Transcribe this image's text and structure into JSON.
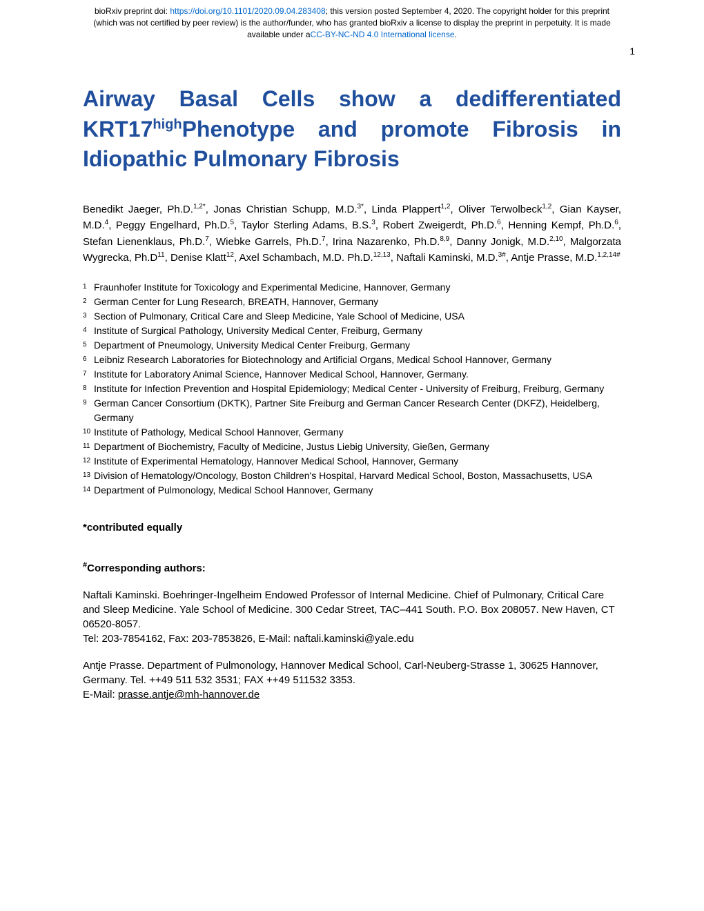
{
  "header": {
    "line1_prefix": "bioRxiv preprint doi: ",
    "doi_link": "https://doi.org/10.1101/2020.09.04.283408",
    "line1_suffix": "; this version posted September 4, 2020. The copyright holder for this preprint",
    "line2": "(which was not certified by peer review) is the author/funder, who has granted bioRxiv a license to display the preprint in perpetuity. It is made",
    "line3_prefix": "available under a",
    "license_link": "CC-BY-NC-ND 4.0 International license",
    "line3_suffix": "."
  },
  "page_number": "1",
  "title": {
    "part1": "Airway Basal Cells show a dedifferentiated KRT17",
    "sup": "high",
    "part2": "Phenotype and promote Fibrosis in Idiopathic Pulmonary Fibrosis"
  },
  "authors_html": "Benedikt Jaeger, Ph.D.<sup>1,2*</sup>, Jonas Christian Schupp, M.D.<sup>3*</sup>, Linda Plappert<sup>1,2</sup>, Oliver Terwolbeck<sup>1,2</sup>, Gian Kayser, M.D.<sup>4</sup>, Peggy Engelhard, Ph.D.<sup>5</sup>, Taylor Sterling Adams, B.S.<sup>3</sup>, Robert Zweigerdt, Ph.D.<sup>6</sup>, Henning Kempf, Ph.D.<sup>6</sup>, Stefan Lienenklaus, Ph.D.<sup>7</sup>, Wiebke Garrels, Ph.D.<sup>7</sup>, Irina Nazarenko, Ph.D.<sup>8,9</sup>, Danny Jonigk, M.D.<sup>2,10</sup>, Malgorzata Wygrecka, Ph.D<sup>11</sup>, Denise Klatt<sup>12</sup>, Axel Schambach, M.D. Ph.D.<sup>12,13</sup>, Naftali Kaminski, M.D.<sup>3#</sup>, Antje Prasse, M.D.<sup>1,2,14#</sup>",
  "affiliations": [
    {
      "num": "1",
      "text": "Fraunhofer Institute for Toxicology and Experimental Medicine, Hannover, Germany"
    },
    {
      "num": "2",
      "text": "German Center for Lung Research, BREATH, Hannover, Germany"
    },
    {
      "num": "3",
      "text": "Section of Pulmonary, Critical Care and Sleep Medicine, Yale School of Medicine, USA"
    },
    {
      "num": "4",
      "text": "Institute of Surgical Pathology, University Medical Center, Freiburg, Germany"
    },
    {
      "num": "5",
      "text": "Department of Pneumology, University Medical Center Freiburg, Germany"
    },
    {
      "num": "6",
      "text": "Leibniz Research Laboratories for Biotechnology and Artificial Organs, Medical School Hannover, Germany"
    },
    {
      "num": "7",
      "text": "Institute for Laboratory Animal Science, Hannover Medical School, Hannover, Germany."
    },
    {
      "num": "8",
      "text": "Institute for Infection Prevention and Hospital Epidemiology; Medical Center - University of Freiburg, Freiburg, Germany"
    },
    {
      "num": "9",
      "text": "German Cancer Consortium (DKTK), Partner Site Freiburg and German Cancer Research Center (DKFZ), Heidelberg, Germany"
    },
    {
      "num": "10",
      "text": "Institute of Pathology, Medical School Hannover, Germany"
    },
    {
      "num": "11",
      "text": "Department of Biochemistry, Faculty of Medicine, Justus Liebig University, Gießen, Germany"
    },
    {
      "num": "12",
      "text": "Institute of Experimental Hematology, Hannover Medical School, Hannover, Germany"
    },
    {
      "num": "13",
      "text": "Division of Hematology/Oncology, Boston Children's Hospital, Harvard Medical School, Boston, Massachusetts, USA"
    },
    {
      "num": "14",
      "text": "Department of Pulmonology, Medical School Hannover, Germany"
    }
  ],
  "contributed_label": "contributed equally",
  "corresponding_label": "Corresponding authors:",
  "corresponding": [
    {
      "text": "Naftali Kaminski. Boehringer-Ingelheim Endowed Professor of Internal Medicine. Chief of Pulmonary, Critical Care and Sleep Medicine. Yale School of Medicine. 300 Cedar Street, TAC–441 South. P.O. Box 208057. New Haven, CT 06520-8057.",
      "contact": "Tel: 203-7854162, Fax: 203-7853826, E-Mail: naftali.kaminski@yale.edu",
      "email_underline": false
    },
    {
      "text": "Antje Prasse. Department of Pulmonology, Hannover Medical School, Carl-Neuberg-Strasse 1, 30625 Hannover, Germany. Tel. ++49 511 532 3531; FAX ++49 511532 3353.",
      "contact_prefix": "E-Mail: ",
      "email": "prasse.antje@mh-hannover.de",
      "email_underline": true
    }
  ],
  "colors": {
    "title_color": "#1f4e9c",
    "link_color": "#0066cc",
    "text_color": "#000000",
    "background": "#ffffff"
  },
  "typography": {
    "title_fontsize": 32,
    "body_fontsize": 15,
    "affil_fontsize": 14,
    "header_fontsize": 12,
    "font_family": "Arial, Helvetica, sans-serif"
  }
}
